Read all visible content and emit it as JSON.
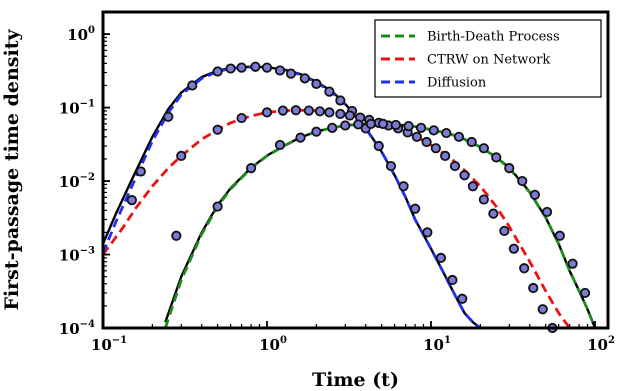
{
  "chart_data": {
    "type": "line",
    "title": "",
    "xlabel": "Time (t)",
    "ylabel": "First-passage time density",
    "xscale": "log",
    "yscale": "log",
    "xlim": [
      0.1,
      120
    ],
    "ylim": [
      0.0001,
      2
    ],
    "x_ticks": [
      {
        "base": "10",
        "exp": "−1",
        "value": 0.1
      },
      {
        "base": "10",
        "exp": "0",
        "value": 1
      },
      {
        "base": "10",
        "exp": "1",
        "value": 10
      },
      {
        "base": "10",
        "exp": "2",
        "value": 100
      }
    ],
    "y_ticks": [
      {
        "base": "10",
        "exp": "−4",
        "value": 0.0001
      },
      {
        "base": "10",
        "exp": "−3",
        "value": 0.001
      },
      {
        "base": "10",
        "exp": "−2",
        "value": 0.01
      },
      {
        "base": "10",
        "exp": "−1",
        "value": 0.1
      },
      {
        "base": "10",
        "exp": "0",
        "value": 1
      }
    ],
    "legend_position": "top-right",
    "grid": false,
    "series": [
      {
        "name": "Birth-Death Process",
        "color": "#1a8c1a",
        "style": "dashed",
        "x": [
          0.24,
          0.3,
          0.4,
          0.5,
          0.6,
          0.8,
          1.0,
          1.3,
          1.6,
          2.0,
          2.5,
          3.0,
          4.0,
          5.0,
          6.0,
          8.0,
          10,
          13,
          16,
          20,
          25,
          30,
          40,
          50,
          60,
          70,
          80,
          90,
          100
        ],
        "y": [
          0.0001,
          0.00045,
          0.0019,
          0.0045,
          0.0078,
          0.015,
          0.022,
          0.031,
          0.039,
          0.047,
          0.053,
          0.057,
          0.06,
          0.06,
          0.059,
          0.055,
          0.05,
          0.044,
          0.037,
          0.029,
          0.021,
          0.015,
          0.007,
          0.0032,
          0.0014,
          0.0006,
          0.00032,
          0.00018,
          0.0001
        ]
      },
      {
        "name": "CTRW on Network",
        "color": "#ee1111",
        "style": "dashed",
        "x": [
          0.1,
          0.13,
          0.16,
          0.2,
          0.25,
          0.3,
          0.4,
          0.5,
          0.6,
          0.8,
          1.0,
          1.3,
          1.6,
          2.0,
          2.5,
          3.0,
          4.0,
          5.0,
          6.0,
          8.0,
          10,
          13,
          16,
          20,
          25,
          30,
          40,
          50,
          60,
          70
        ],
        "y": [
          0.001,
          0.0022,
          0.0044,
          0.0085,
          0.015,
          0.022,
          0.037,
          0.05,
          0.062,
          0.077,
          0.086,
          0.091,
          0.092,
          0.091,
          0.087,
          0.081,
          0.07,
          0.06,
          0.052,
          0.041,
          0.031,
          0.021,
          0.014,
          0.0085,
          0.0045,
          0.0024,
          0.0008,
          0.00032,
          0.00016,
          0.0001
        ]
      },
      {
        "name": "Diffusion",
        "color": "#1f2ff0",
        "style": "dashed",
        "x": [
          0.1,
          0.12,
          0.15,
          0.2,
          0.25,
          0.3,
          0.4,
          0.5,
          0.6,
          0.8,
          1.0,
          1.3,
          1.6,
          2.0,
          2.5,
          3.0,
          4.0,
          5.0,
          6.0,
          7.0,
          8.0,
          10,
          12,
          14,
          16,
          18,
          20
        ],
        "y": [
          0.00105,
          0.0028,
          0.0085,
          0.035,
          0.085,
          0.15,
          0.25,
          0.31,
          0.34,
          0.355,
          0.35,
          0.32,
          0.28,
          0.22,
          0.16,
          0.11,
          0.052,
          0.025,
          0.012,
          0.006,
          0.003,
          0.0012,
          0.00055,
          0.00028,
          0.00016,
          0.00012,
          0.0001
        ]
      }
    ],
    "exact_curves": [
      {
        "color": "#000000",
        "x": [
          0.24,
          0.3,
          0.4,
          0.5,
          0.6,
          0.8,
          1.0,
          1.3,
          1.6,
          2.0,
          2.5,
          3.0,
          4.0,
          5.0,
          6.0,
          8.0,
          10,
          13,
          16,
          20,
          25,
          30,
          40,
          50,
          60,
          70,
          80,
          90,
          100
        ],
        "y": [
          0.00012,
          0.0005,
          0.002,
          0.0047,
          0.008,
          0.0152,
          0.0222,
          0.0312,
          0.0392,
          0.0472,
          0.0532,
          0.0572,
          0.0602,
          0.0602,
          0.0592,
          0.0552,
          0.0502,
          0.0442,
          0.0372,
          0.0292,
          0.0212,
          0.0152,
          0.0071,
          0.0032,
          0.0014,
          0.0006,
          0.00032,
          0.00018,
          0.0001
        ]
      },
      {
        "color": "#000000",
        "x": [
          0.1,
          0.12,
          0.15,
          0.2,
          0.25,
          0.3,
          0.4,
          0.5,
          0.6,
          0.8,
          1.0,
          1.3,
          1.6,
          2.0,
          2.5,
          3.0,
          4.0,
          5.0,
          6.0,
          7.0,
          8.0,
          10,
          12,
          14,
          16,
          18,
          20
        ],
        "y": [
          0.0014,
          0.0036,
          0.0105,
          0.04,
          0.095,
          0.16,
          0.26,
          0.32,
          0.345,
          0.36,
          0.355,
          0.325,
          0.285,
          0.225,
          0.165,
          0.112,
          0.053,
          0.025,
          0.012,
          0.006,
          0.003,
          0.0012,
          0.00055,
          0.00028,
          0.00016,
          0.00012,
          0.0001
        ]
      }
    ],
    "markers": [
      {
        "fill": "#7b7bd6",
        "stroke": "#111111",
        "x": [
          0.17,
          0.25,
          0.35,
          0.5,
          0.6,
          0.7,
          0.85,
          1.0,
          1.2,
          1.4,
          1.7,
          2.0,
          2.4,
          2.8,
          3.3,
          4.0,
          4.8,
          5.7,
          6.8,
          8.0,
          9.5,
          11.5,
          13.5,
          15.5
        ],
        "y": [
          0.0135,
          0.075,
          0.2,
          0.31,
          0.34,
          0.35,
          0.36,
          0.35,
          0.32,
          0.29,
          0.25,
          0.21,
          0.165,
          0.125,
          0.09,
          0.052,
          0.03,
          0.016,
          0.0085,
          0.0042,
          0.002,
          0.0009,
          0.00045,
          0.00025
        ]
      },
      {
        "fill": "#7b7bd6",
        "stroke": "#111111",
        "x": [
          0.15,
          0.3,
          0.5,
          0.7,
          1.0,
          1.25,
          1.5,
          1.8,
          2.1,
          2.4,
          2.8,
          3.2,
          3.7,
          4.2,
          4.8,
          5.5,
          6.3,
          7.2,
          8.2,
          9.4,
          10.7,
          12.2,
          14,
          16,
          18,
          21,
          24,
          28,
          32,
          37,
          42,
          48,
          55
        ],
        "y": [
          0.0055,
          0.022,
          0.05,
          0.072,
          0.086,
          0.091,
          0.092,
          0.091,
          0.089,
          0.086,
          0.082,
          0.078,
          0.073,
          0.068,
          0.062,
          0.057,
          0.052,
          0.046,
          0.04,
          0.034,
          0.028,
          0.022,
          0.016,
          0.012,
          0.0085,
          0.0056,
          0.0036,
          0.0021,
          0.0012,
          0.00065,
          0.00035,
          0.00018,
          0.0001
        ]
      },
      {
        "fill": "#7b7bd6",
        "stroke": "#111111",
        "x": [
          0.28,
          0.5,
          0.8,
          1.2,
          1.6,
          2.0,
          2.5,
          3.0,
          3.6,
          4.3,
          5.1,
          6.1,
          7.3,
          8.7,
          10.4,
          12.4,
          14.8,
          17.7,
          21,
          25,
          30,
          36,
          43,
          51,
          61,
          73,
          87
        ],
        "y": [
          0.0018,
          0.0045,
          0.015,
          0.031,
          0.039,
          0.047,
          0.053,
          0.057,
          0.059,
          0.06,
          0.06,
          0.058,
          0.056,
          0.053,
          0.049,
          0.045,
          0.04,
          0.034,
          0.028,
          0.021,
          0.015,
          0.01,
          0.0065,
          0.0038,
          0.0018,
          0.00075,
          0.0003
        ]
      }
    ]
  }
}
